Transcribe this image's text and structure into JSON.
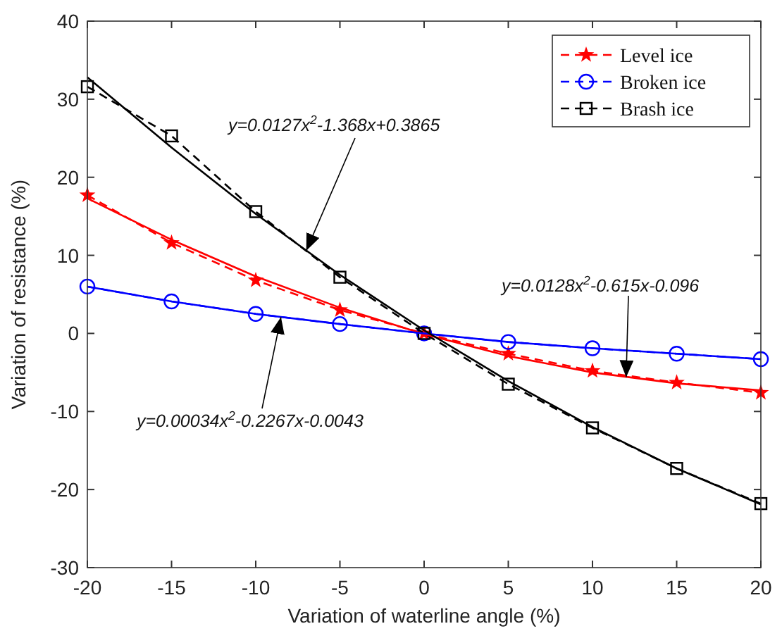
{
  "chart_data": {
    "type": "line",
    "xlabel": "Variation of waterline angle (%)",
    "ylabel": "Variation of resistance (%)",
    "x": [
      -20,
      -15,
      -10,
      -5,
      0,
      5,
      10,
      15,
      20
    ],
    "xlim": [
      -20,
      20
    ],
    "xticks": [
      -20,
      -15,
      -10,
      -5,
      0,
      5,
      10,
      15,
      20
    ],
    "ylim": [
      -30,
      40
    ],
    "yticks": [
      -30,
      -20,
      -10,
      0,
      10,
      20,
      30,
      40
    ],
    "grid": false,
    "legend": "top right",
    "series": [
      {
        "name": "Level ice",
        "color": "#ff0000",
        "marker": "star",
        "line_style": "dashed",
        "values": [
          17.7,
          11.6,
          6.8,
          3.0,
          0,
          -2.6,
          -4.8,
          -6.3,
          -7.6
        ]
      },
      {
        "name": "Broken ice",
        "color": "#0000ff",
        "marker": "circle",
        "line_style": "dashed",
        "values": [
          6.0,
          4.1,
          2.5,
          1.2,
          0,
          -1.1,
          -1.9,
          -2.6,
          -3.3
        ]
      },
      {
        "name": "Brash ice",
        "color": "#000000",
        "marker": "square",
        "line_style": "dashed",
        "values": [
          31.6,
          25.3,
          15.6,
          7.2,
          0,
          -6.5,
          -12.1,
          -17.3,
          -21.8
        ]
      },
      {
        "type": "line",
        "color": "#ff0000",
        "marker": "none",
        "line_style": "solid",
        "x": [
          -20,
          -15,
          -10,
          -5,
          0,
          5,
          10,
          15,
          20
        ],
        "values": [
          17.3,
          12.0,
          7.3,
          3.3,
          -0.1,
          -2.9,
          -5.0,
          -6.4,
          -7.3
        ]
      },
      {
        "type": "line",
        "color": "#0000ff",
        "marker": "none",
        "line_style": "solid",
        "x": [
          -20,
          -15,
          -10,
          -5,
          0,
          5,
          10,
          15,
          20
        ],
        "values": [
          6.0,
          4.1,
          2.5,
          1.2,
          0,
          -1.1,
          -1.9,
          -2.6,
          -3.3
        ]
      },
      {
        "type": "line",
        "color": "#000000",
        "marker": "none",
        "line_style": "solid",
        "x": [
          -20,
          -15,
          -10,
          -5,
          0,
          5,
          10,
          15,
          20
        ],
        "values": [
          32.8,
          23.8,
          15.3,
          7.5,
          0.4,
          -6.1,
          -12.0,
          -17.3,
          -21.9
        ]
      }
    ],
    "annotations": [
      {
        "text": "y=0.0127x$^{2}$-1.368x+0.3865",
        "x": -7,
        "y": 10.6
      },
      {
        "text": "y=0.0128x$^{2}$-0.615x-0.096",
        "x": 12,
        "y": -5.6
      },
      {
        "text": "y=0.00034x$^{2}$-0.2267x-0.0043",
        "x": -8.5,
        "y": 2.1
      }
    ]
  }
}
